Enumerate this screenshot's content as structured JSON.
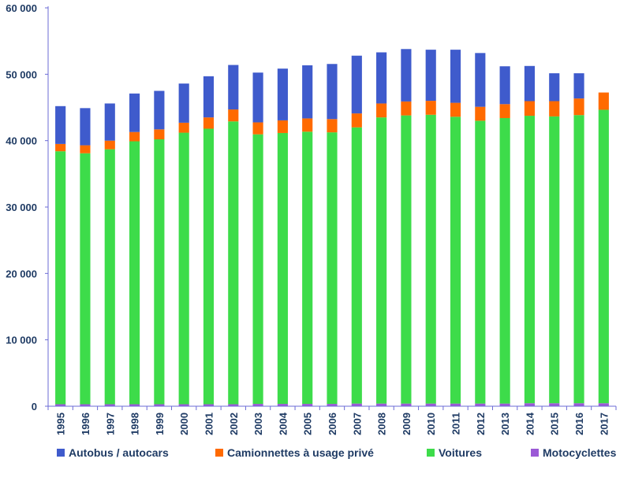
{
  "chart_data": {
    "type": "bar",
    "stacked": true,
    "title": "",
    "xlabel": "",
    "ylabel": "",
    "ylim": [
      0,
      60000
    ],
    "yticks": [
      0,
      10000,
      20000,
      30000,
      40000,
      50000,
      60000
    ],
    "ytick_labels": [
      "0",
      "10 000",
      "20 000",
      "30 000",
      "40 000",
      "50 000",
      "60 000"
    ],
    "grid": false,
    "legend_position": "bottom",
    "categories": [
      "1995",
      "1996",
      "1997",
      "1998",
      "1999",
      "2000",
      "2001",
      "2002",
      "2003",
      "2004",
      "2005",
      "2006",
      "2007",
      "2008",
      "2009",
      "2010",
      "2011",
      "2012",
      "2013",
      "2014",
      "2015",
      "2016",
      "2017"
    ],
    "series": [
      {
        "name": "Motocyclettes",
        "color": "#9b59d6",
        "values": [
          300,
          300,
          300,
          300,
          300,
          300,
          300,
          300,
          350,
          350,
          350,
          350,
          400,
          400,
          400,
          400,
          400,
          400,
          400,
          450,
          450,
          450,
          450
        ]
      },
      {
        "name": "Voitures",
        "color": "#3ddc4a",
        "values": [
          38100,
          37800,
          38400,
          39600,
          39900,
          40900,
          41500,
          42600,
          40600,
          40800,
          41000,
          40900,
          41600,
          43100,
          43400,
          43500,
          43200,
          42600,
          43000,
          43300,
          43200,
          43400,
          44200
        ]
      },
      {
        "name": "Camionnettes à usage privé",
        "color": "#ff6a00",
        "values": [
          1100,
          1200,
          1300,
          1400,
          1500,
          1500,
          1700,
          1800,
          1800,
          1900,
          2000,
          2000,
          2100,
          2100,
          2100,
          2100,
          2100,
          2100,
          2100,
          2200,
          2300,
          2500,
          2600
        ]
      },
      {
        "name": "Autobus / autocars",
        "color": "#3f5bcc",
        "values": [
          5700,
          5600,
          5600,
          5800,
          5800,
          5900,
          6200,
          6700,
          7500,
          7800,
          8000,
          8300,
          8700,
          7700,
          7900,
          7700,
          8000,
          8100,
          5700,
          5300,
          4200,
          3800,
          0
        ]
      }
    ],
    "legend_order": [
      "Autobus / autocars",
      "Camionnettes à usage privé",
      "Voitures",
      "Motocyclettes"
    ],
    "axis_color": "#6b6bd6",
    "text_color": "#1f3b64"
  }
}
